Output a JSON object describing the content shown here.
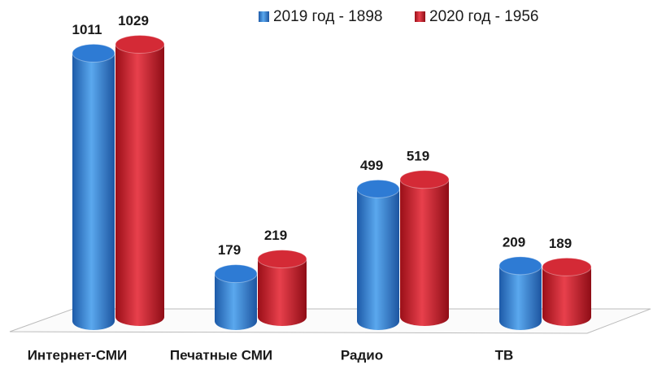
{
  "chart_data": {
    "type": "bar",
    "categories": [
      "Интернет-СМИ",
      "Печатные СМИ",
      "Радио",
      "ТВ"
    ],
    "series": [
      {
        "name": "2019 год - 1898",
        "color": "#2e7bd4",
        "values": [
          1011,
          179,
          499,
          209
        ]
      },
      {
        "name": "2020 год - 1956",
        "color": "#d42a36",
        "values": [
          1029,
          219,
          519,
          189
        ]
      }
    ]
  }
}
